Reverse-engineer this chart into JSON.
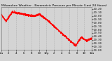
{
  "title": "Milwaukee Weather - Barometric Pressure per Minute (Last 24 Hours)",
  "background_color": "#d4d4d4",
  "plot_bg_color": "#d4d4d4",
  "line_color": "#ff0000",
  "grid_color": "#aaaaaa",
  "title_color": "#000000",
  "tick_label_color": "#000000",
  "ylim": [
    29.0,
    30.25
  ],
  "yticks": [
    29.0,
    29.1,
    29.2,
    29.3,
    29.4,
    29.5,
    29.6,
    29.7,
    29.8,
    29.9,
    30.0,
    30.1,
    30.2
  ],
  "num_points": 1440,
  "marker_size": 0.8,
  "line_width": 0.4,
  "title_fontsize": 3.2,
  "tick_fontsize": 2.8,
  "right_axis": true,
  "num_vgrid": 7,
  "xtick_labels": [
    "12a",
    "2",
    "4",
    "6",
    "8",
    "10",
    "12p",
    "2",
    "4",
    "6",
    "8",
    "10",
    "12a"
  ]
}
